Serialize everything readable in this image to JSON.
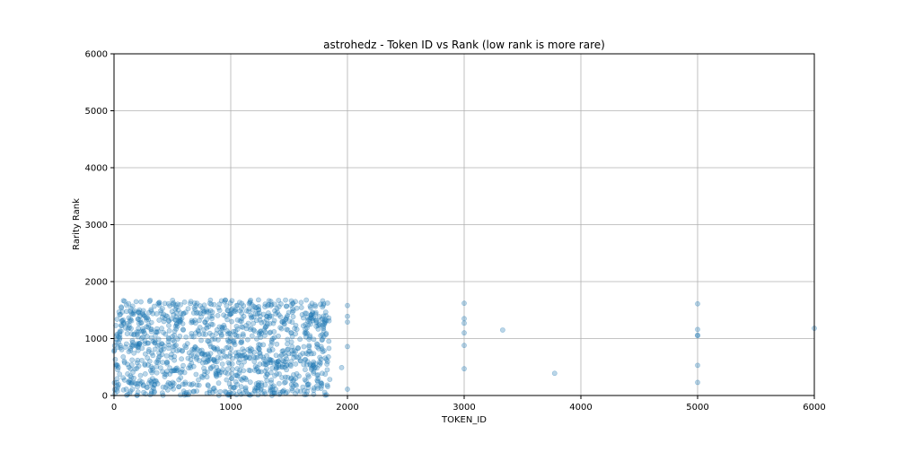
{
  "chart_data": {
    "type": "scatter",
    "title": "astrohedz - Token ID vs Rank (low rank is more rare)",
    "xlabel": "TOKEN_ID",
    "ylabel": "Rarity Rank",
    "xlim": [
      0,
      6000
    ],
    "ylim": [
      0,
      6000
    ],
    "xticks": [
      "0",
      "1000",
      "2000",
      "3000",
      "4000",
      "5000",
      "6000"
    ],
    "yticks": [
      "0",
      "1000",
      "2000",
      "3000",
      "4000",
      "5000",
      "6000"
    ],
    "grid": true,
    "point_color": "#1f77b4",
    "point_alpha": 0.3,
    "dense_cluster": {
      "x_range": [
        0,
        1850
      ],
      "y_range": [
        0,
        1680
      ],
      "approx_count": 1200
    },
    "x": [
      2000,
      2000,
      2000,
      2000,
      2000,
      1950,
      3000,
      3000,
      3000,
      3000,
      3000,
      3000,
      3330,
      3775,
      5000,
      5000,
      5000,
      5000,
      5000,
      5000,
      6000
    ],
    "y": [
      1580,
      1390,
      1290,
      860,
      110,
      490,
      1620,
      1350,
      1270,
      1100,
      880,
      470,
      1150,
      390,
      1610,
      1160,
      1060,
      1050,
      530,
      230,
      1180
    ]
  }
}
